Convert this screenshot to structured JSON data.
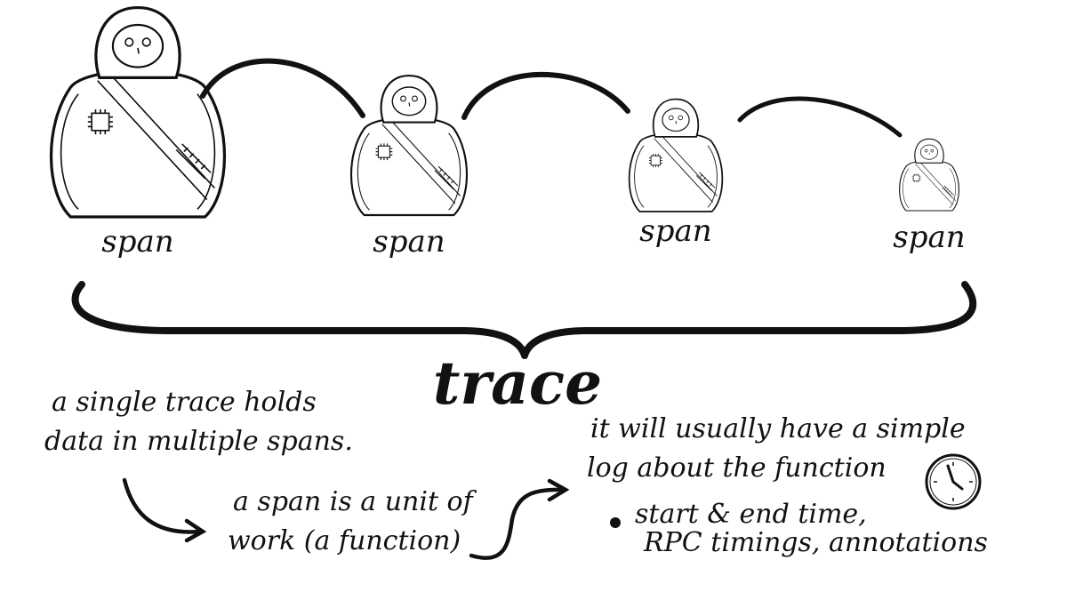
{
  "dolls": [
    {
      "label": "span"
    },
    {
      "label": "span"
    },
    {
      "label": "span"
    },
    {
      "label": "span"
    }
  ],
  "trace_label": "trace",
  "notes": {
    "trace_holds": [
      "a single trace holds",
      "data in multiple spans."
    ],
    "span_unit": [
      "a span is a unit of",
      "work (a function)"
    ],
    "log_intro": [
      "it will usually have a simple",
      "log about the function"
    ],
    "log_details": [
      "start & end time,",
      "RPC timings, annotations"
    ]
  },
  "icons": {
    "doll": "nesting-doll-icon",
    "clock": "clock-icon",
    "chip": "microchip-icon"
  },
  "colors": {
    "ink": "#111111",
    "paper": "#ffffff"
  }
}
